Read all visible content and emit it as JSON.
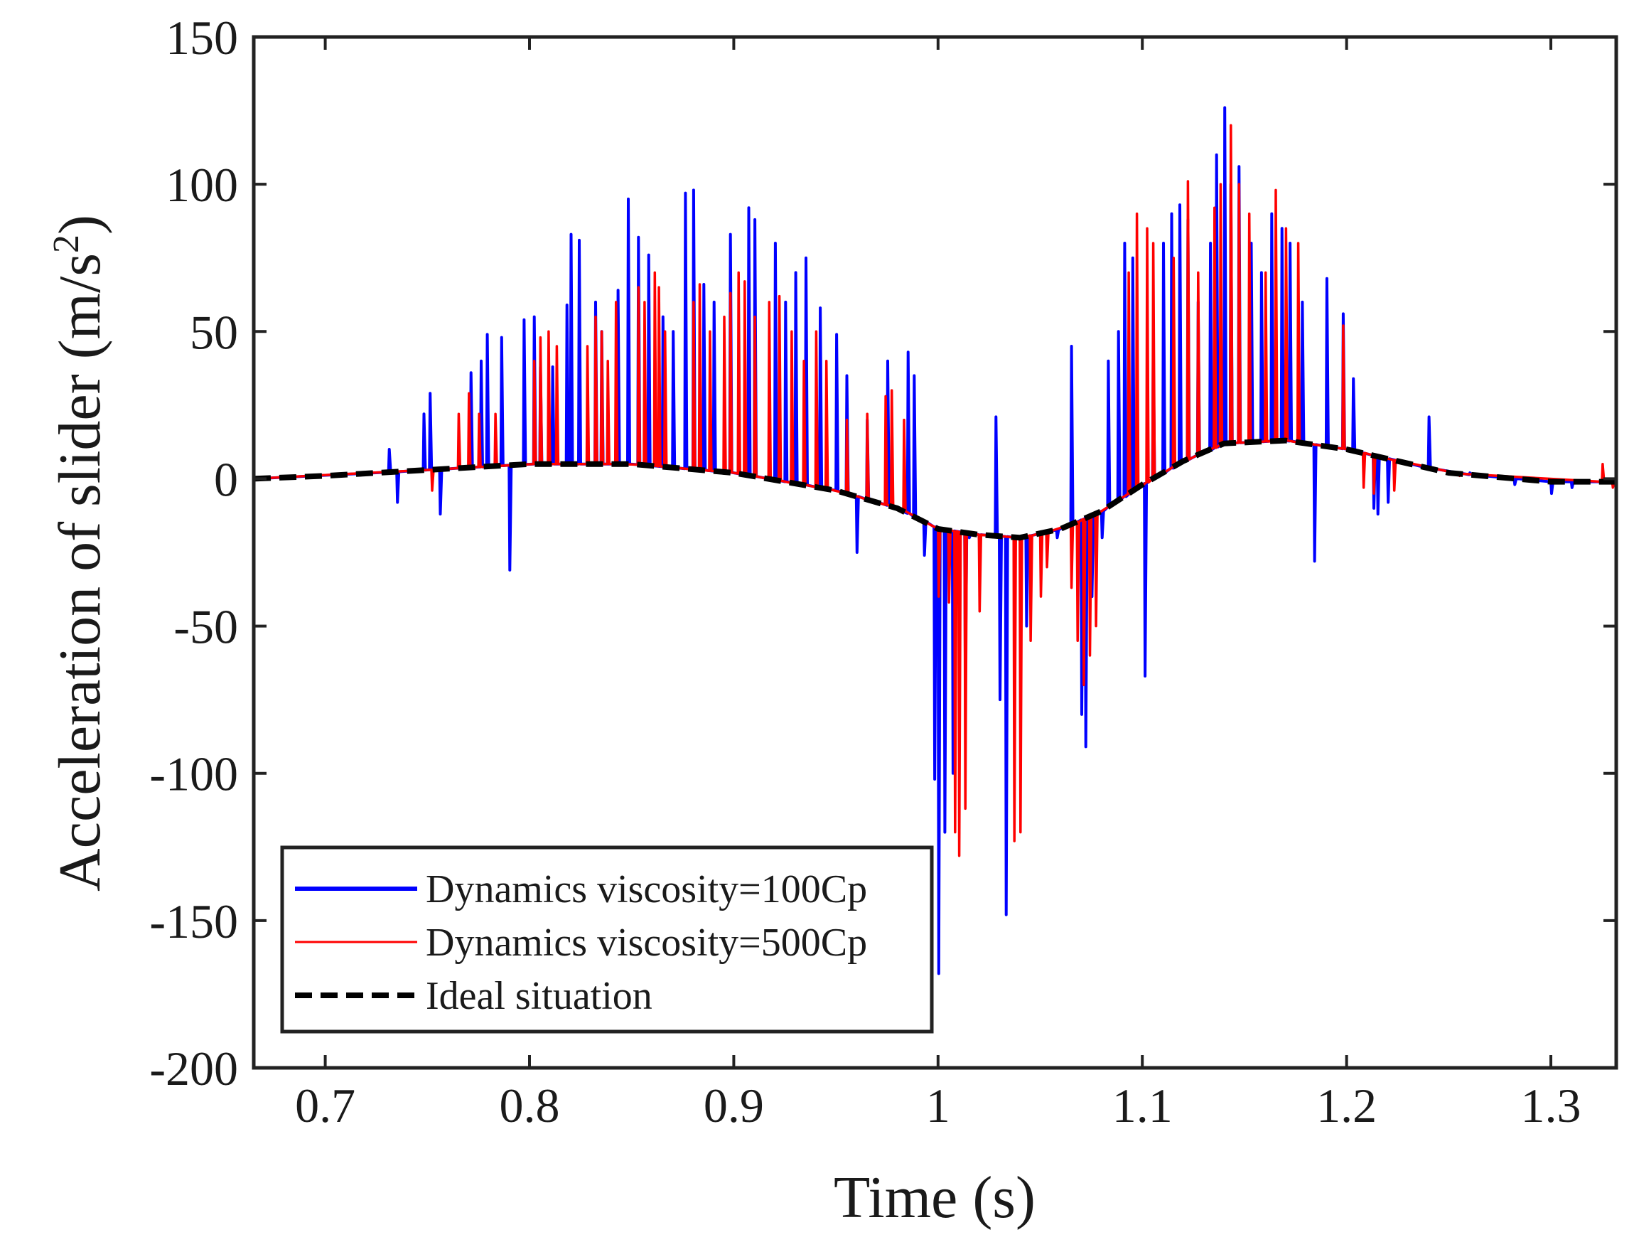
{
  "chart_data": {
    "type": "line",
    "title": "",
    "xlabel": "Time (s)",
    "ylabel_main": "Acceleration of slider (m/s",
    "ylabel_sup": "2",
    "ylabel_close": ")",
    "xlim": [
      0.665,
      1.332
    ],
    "ylim": [
      -200,
      150
    ],
    "xticks": [
      0.7,
      0.8,
      0.9,
      1.0,
      1.1,
      1.2,
      1.3
    ],
    "xtick_labels": [
      "0.7",
      "0.8",
      "0.9",
      "1",
      "1.1",
      "1.2",
      "1.3"
    ],
    "yticks": [
      -200,
      -150,
      -100,
      -50,
      0,
      50,
      100,
      150
    ],
    "ytick_labels": [
      "-200",
      "-150",
      "-100",
      "-50",
      "0",
      "50",
      "100",
      "150"
    ],
    "grid": false,
    "legend_position": "bottom-left",
    "ideal": {
      "name": "Ideal situation",
      "color": "#000000",
      "style": "dashed",
      "x": [
        0.665,
        0.7,
        0.75,
        0.8,
        0.85,
        0.9,
        0.95,
        0.98,
        1.0,
        1.02,
        1.04,
        1.06,
        1.08,
        1.1,
        1.12,
        1.14,
        1.17,
        1.2,
        1.25,
        1.3,
        1.332
      ],
      "y": [
        0,
        1,
        3,
        5,
        5,
        2,
        -4,
        -10,
        -17,
        -19,
        -20,
        -17,
        -11,
        -2,
        6,
        12,
        13,
        10,
        2,
        -1,
        -1
      ]
    },
    "series": [
      {
        "name": "Dynamics viscosity=100Cp",
        "color": "#0000ff",
        "spikes": [
          [
            0.731,
            10
          ],
          [
            0.735,
            -8
          ],
          [
            0.748,
            22
          ],
          [
            0.751,
            29
          ],
          [
            0.756,
            -12
          ],
          [
            0.771,
            36
          ],
          [
            0.776,
            40
          ],
          [
            0.779,
            49
          ],
          [
            0.786,
            48
          ],
          [
            0.79,
            -31
          ],
          [
            0.797,
            54
          ],
          [
            0.802,
            55
          ],
          [
            0.805,
            38
          ],
          [
            0.811,
            38
          ],
          [
            0.818,
            59
          ],
          [
            0.82,
            83
          ],
          [
            0.824,
            81
          ],
          [
            0.832,
            60
          ],
          [
            0.835,
            50
          ],
          [
            0.843,
            64
          ],
          [
            0.848,
            95
          ],
          [
            0.853,
            82
          ],
          [
            0.858,
            76
          ],
          [
            0.865,
            55
          ],
          [
            0.87,
            50
          ],
          [
            0.876,
            97
          ],
          [
            0.88,
            98
          ],
          [
            0.885,
            66
          ],
          [
            0.89,
            60
          ],
          [
            0.898,
            83
          ],
          [
            0.907,
            92
          ],
          [
            0.91,
            88
          ],
          [
            0.92,
            80
          ],
          [
            0.925,
            60
          ],
          [
            0.93,
            70
          ],
          [
            0.935,
            75
          ],
          [
            0.942,
            58
          ],
          [
            0.95,
            49
          ],
          [
            0.955,
            35
          ],
          [
            0.96,
            -25
          ],
          [
            0.965,
            20
          ],
          [
            0.975,
            40
          ],
          [
            0.985,
            43
          ],
          [
            0.988,
            35
          ],
          [
            0.993,
            -26
          ],
          [
            0.998,
            -102
          ],
          [
            1.0,
            -168
          ],
          [
            1.003,
            -120
          ],
          [
            1.007,
            -100
          ],
          [
            1.013,
            -70
          ],
          [
            1.015,
            -20
          ],
          [
            1.02,
            -22
          ],
          [
            1.028,
            21
          ],
          [
            1.03,
            -75
          ],
          [
            1.033,
            -148
          ],
          [
            1.036,
            -20
          ],
          [
            1.043,
            -50
          ],
          [
            1.058,
            -20
          ],
          [
            1.065,
            45
          ],
          [
            1.07,
            -80
          ],
          [
            1.072,
            -91
          ],
          [
            1.075,
            -40
          ],
          [
            1.08,
            -20
          ],
          [
            1.083,
            40
          ],
          [
            1.088,
            50
          ],
          [
            1.091,
            80
          ],
          [
            1.095,
            75
          ],
          [
            1.101,
            -67
          ],
          [
            1.105,
            45
          ],
          [
            1.11,
            80
          ],
          [
            1.114,
            90
          ],
          [
            1.118,
            93
          ],
          [
            1.122,
            88
          ],
          [
            1.127,
            60
          ],
          [
            1.133,
            80
          ],
          [
            1.136,
            110
          ],
          [
            1.14,
            126
          ],
          [
            1.143,
            100
          ],
          [
            1.147,
            106
          ],
          [
            1.153,
            80
          ],
          [
            1.158,
            70
          ],
          [
            1.163,
            90
          ],
          [
            1.168,
            85
          ],
          [
            1.172,
            80
          ],
          [
            1.178,
            60
          ],
          [
            1.184,
            -28
          ],
          [
            1.19,
            68
          ],
          [
            1.198,
            56
          ],
          [
            1.203,
            34
          ],
          [
            1.213,
            -10
          ],
          [
            1.215,
            -12
          ],
          [
            1.22,
            -8
          ],
          [
            1.24,
            21
          ],
          [
            1.26,
            2
          ],
          [
            1.282,
            -2
          ],
          [
            1.3,
            -5
          ],
          [
            1.31,
            -3
          ],
          [
            1.33,
            -1
          ]
        ]
      },
      {
        "name": "Dynamics viscosity=500Cp",
        "color": "#ff0000",
        "spikes": [
          [
            0.752,
            -4
          ],
          [
            0.765,
            22
          ],
          [
            0.77,
            29
          ],
          [
            0.775,
            22
          ],
          [
            0.783,
            22
          ],
          [
            0.802,
            40
          ],
          [
            0.805,
            48
          ],
          [
            0.809,
            50
          ],
          [
            0.813,
            45
          ],
          [
            0.828,
            45
          ],
          [
            0.832,
            55
          ],
          [
            0.835,
            50
          ],
          [
            0.838,
            40
          ],
          [
            0.842,
            60
          ],
          [
            0.853,
            65
          ],
          [
            0.856,
            60
          ],
          [
            0.861,
            70
          ],
          [
            0.863,
            65
          ],
          [
            0.866,
            50
          ],
          [
            0.88,
            60
          ],
          [
            0.883,
            66
          ],
          [
            0.888,
            50
          ],
          [
            0.895,
            55
          ],
          [
            0.898,
            63
          ],
          [
            0.902,
            70
          ],
          [
            0.905,
            67
          ],
          [
            0.91,
            55
          ],
          [
            0.917,
            60
          ],
          [
            0.922,
            62
          ],
          [
            0.928,
            50
          ],
          [
            0.934,
            40
          ],
          [
            0.94,
            50
          ],
          [
            0.945,
            40
          ],
          [
            0.955,
            20
          ],
          [
            0.965,
            22
          ],
          [
            0.974,
            28
          ],
          [
            0.977,
            30
          ],
          [
            0.983,
            20
          ],
          [
            1.0,
            -40
          ],
          [
            1.005,
            -42
          ],
          [
            1.008,
            -120
          ],
          [
            1.01,
            -128
          ],
          [
            1.013,
            -112
          ],
          [
            1.02,
            -45
          ],
          [
            1.037,
            -123
          ],
          [
            1.04,
            -120
          ],
          [
            1.045,
            -55
          ],
          [
            1.05,
            -40
          ],
          [
            1.053,
            -30
          ],
          [
            1.065,
            -37
          ],
          [
            1.068,
            -55
          ],
          [
            1.071,
            -70
          ],
          [
            1.074,
            -60
          ],
          [
            1.077,
            -50
          ],
          [
            1.093,
            70
          ],
          [
            1.097,
            90
          ],
          [
            1.102,
            85
          ],
          [
            1.105,
            80
          ],
          [
            1.115,
            75
          ],
          [
            1.122,
            101
          ],
          [
            1.127,
            70
          ],
          [
            1.135,
            92
          ],
          [
            1.138,
            100
          ],
          [
            1.143,
            120
          ],
          [
            1.147,
            100
          ],
          [
            1.152,
            90
          ],
          [
            1.16,
            70
          ],
          [
            1.165,
            98
          ],
          [
            1.17,
            85
          ],
          [
            1.176,
            80
          ],
          [
            1.198,
            52
          ],
          [
            1.208,
            -3
          ],
          [
            1.213,
            -5
          ],
          [
            1.223,
            -4
          ],
          [
            1.255,
            1
          ],
          [
            1.325,
            5
          ],
          [
            1.33,
            -3
          ]
        ]
      }
    ]
  }
}
